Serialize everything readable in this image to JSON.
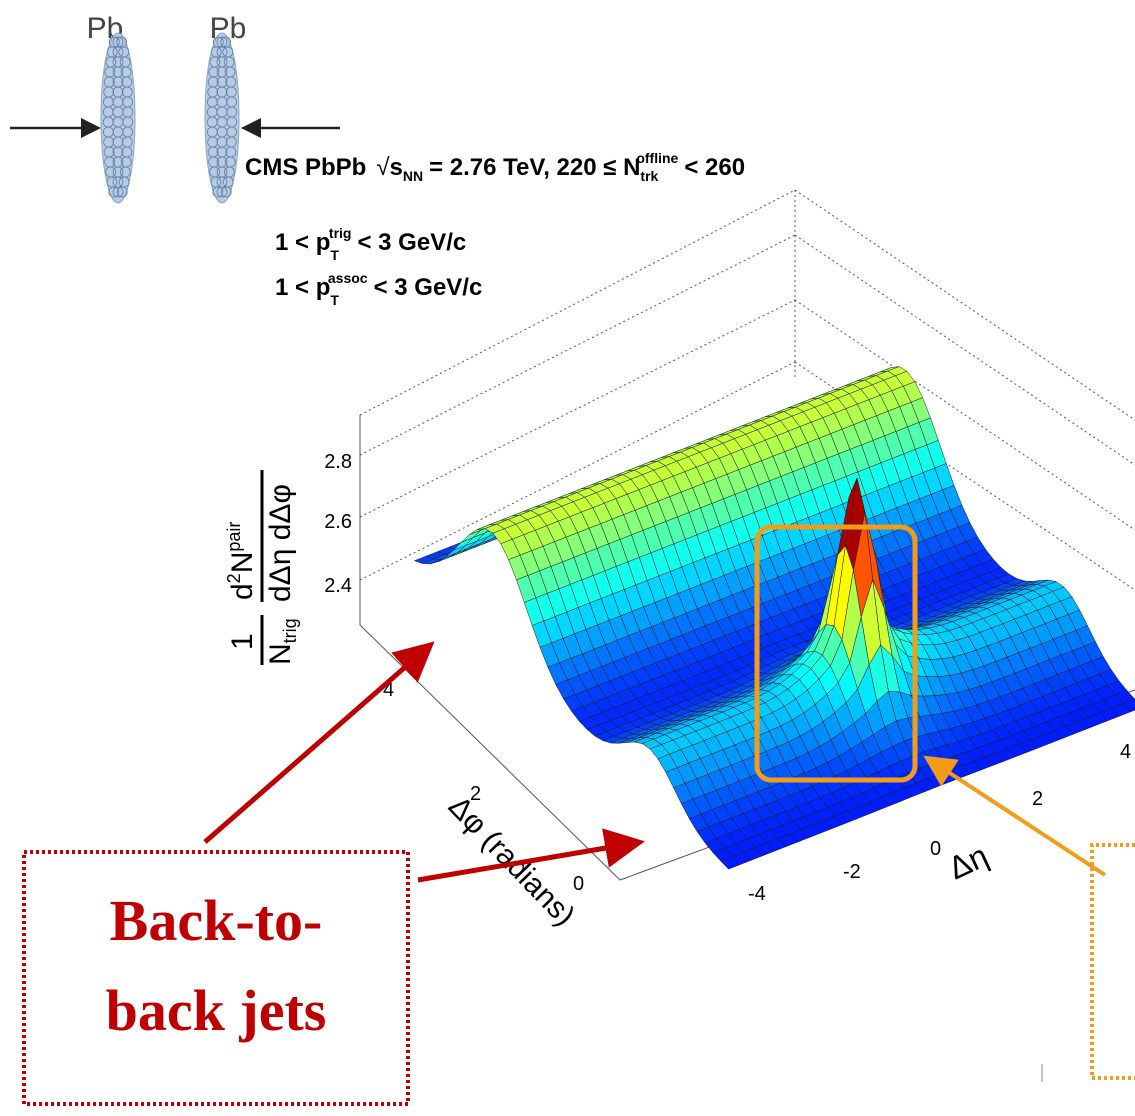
{
  "collision": {
    "beam_labels": [
      "Pb",
      "Pb"
    ]
  },
  "plot": {
    "title": {
      "experiment": "CMS PbPb",
      "sqrt": "√",
      "s": "s",
      "s_sub": "NN",
      "middle": "= 2.76 TeV, 220 ≤ N",
      "n_sub": "trk",
      "n_sup": "offline",
      "end": "< 260"
    },
    "cuts": [
      {
        "prefix": "1 < p",
        "sub": "T",
        "sup": "trig",
        "suffix": "< 3 GeV/c"
      },
      {
        "prefix": "1 < p",
        "sub": "T",
        "sup": "assoc",
        "suffix": "< 3 GeV/c"
      }
    ],
    "z_axis": {
      "label": {
        "factor_num": "1",
        "factor_den": "N",
        "factor_den_sub": "trig",
        "num": "d",
        "num_sup": "2",
        "num_rest": "N",
        "num_rest_sup": "pair",
        "den": "dΔη dΔφ"
      },
      "ticks": [
        "2.4",
        "2.6",
        "2.8"
      ]
    },
    "phi_axis": {
      "label": "Δφ (radians)",
      "ticks": [
        "0",
        "2",
        "4"
      ]
    },
    "eta_axis": {
      "label": "Δη",
      "ticks": [
        "-4",
        "-2",
        "0",
        "2",
        "4"
      ]
    }
  },
  "annotation": {
    "lines": [
      "Back-to-",
      "back jets"
    ]
  }
}
